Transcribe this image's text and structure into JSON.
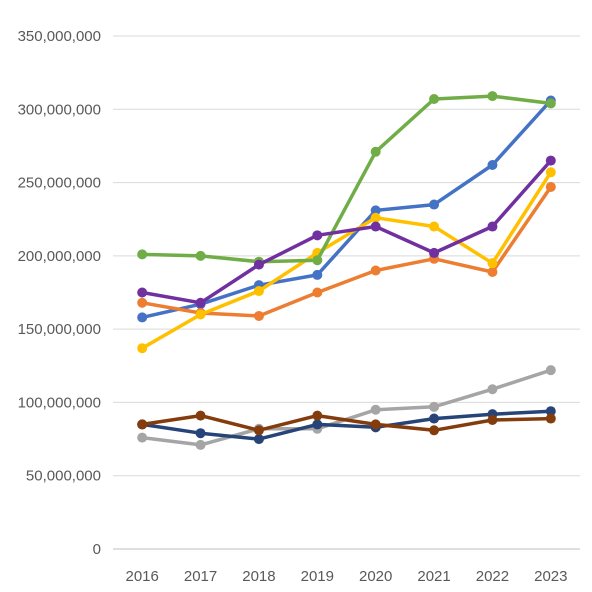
{
  "chart_data": {
    "type": "line",
    "title": "",
    "xlabel": "",
    "ylabel": "",
    "x": [
      "2016",
      "2017",
      "2018",
      "2019",
      "2020",
      "2021",
      "2022",
      "2023"
    ],
    "ylim": [
      0,
      350000000
    ],
    "y_ticks": [
      0,
      50000000,
      100000000,
      150000000,
      200000000,
      250000000,
      300000000,
      350000000
    ],
    "y_tick_labels": [
      "0",
      "50,000,000",
      "100,000,000",
      "150,000,000",
      "200,000,000",
      "250,000,000",
      "300,000,000",
      "350,000,000"
    ],
    "grid": "horizontal",
    "legend": "none",
    "series": [
      {
        "color": "#4472C4",
        "values": [
          158000000,
          167000000,
          180000000,
          187000000,
          231000000,
          235000000,
          262000000,
          306000000
        ]
      },
      {
        "color": "#ED7D31",
        "values": [
          168000000,
          161000000,
          159000000,
          175000000,
          190000000,
          198000000,
          189000000,
          247000000
        ]
      },
      {
        "color": "#A5A5A5",
        "values": [
          76000000,
          71000000,
          82000000,
          82000000,
          95000000,
          97000000,
          109000000,
          122000000
        ]
      },
      {
        "color": "#FFC000",
        "values": [
          137000000,
          160000000,
          176000000,
          202000000,
          226000000,
          220000000,
          195000000,
          257000000
        ]
      },
      {
        "color": "#264478",
        "values": [
          85000000,
          79000000,
          75000000,
          85000000,
          83000000,
          89000000,
          92000000,
          94000000
        ]
      },
      {
        "color": "#70AD47",
        "values": [
          201000000,
          200000000,
          196000000,
          197000000,
          271000000,
          307000000,
          309000000,
          304000000
        ]
      },
      {
        "color": "#843C0C",
        "values": [
          85000000,
          91000000,
          81000000,
          91000000,
          85000000,
          81000000,
          88000000,
          89000000
        ]
      },
      {
        "color": "#7030A0",
        "values": [
          175000000,
          168000000,
          194000000,
          214000000,
          220000000,
          202000000,
          220000000,
          265000000
        ]
      }
    ]
  }
}
